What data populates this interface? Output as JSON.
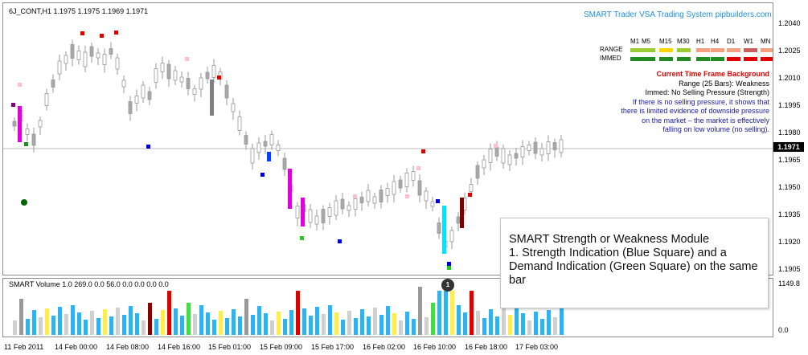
{
  "chart": {
    "symbol_line": "6J_CONT,H1  1.1975 1.1975 1.1969 1.1971",
    "volume_line": "SMART Volume 1.0 269.0 0.0 56.0 0.0 0.0 0.0 0.0",
    "title": "SMART Trader VSA Trading System pipbuilders.com",
    "price_axis": [
      "1.2040",
      "1.2025",
      "1.2010",
      "1.1995",
      "1.1980",
      "1.1965",
      "1.1950",
      "1.1935",
      "1.1920",
      "1.1905"
    ],
    "current_price": "1.1971",
    "volume_axis": [
      "1149.8",
      "0.0"
    ],
    "time_axis": [
      "11 Feb 2011",
      "14 Feb 00:00",
      "14 Feb 08:00",
      "14 Feb 16:00",
      "15 Feb 01:00",
      "15 Feb 09:00",
      "15 Feb 17:00",
      "16 Feb 02:00",
      "16 Feb 10:00",
      "16 Feb 18:00",
      "17 Feb 03:00"
    ]
  },
  "timeframe_table": {
    "headers": [
      "M1",
      "M5",
      "M15",
      "M30",
      "H1",
      "H4",
      "D1",
      "W1",
      "MN"
    ],
    "range_label": "RANGE",
    "immed_label": "IMMED",
    "range_colors": [
      "#9acd32",
      "#9acd32",
      "#ffd700",
      "#9acd32",
      "#f4a080",
      "#f4a080",
      "#f4a080",
      "#cd5c5c",
      "#f4a080"
    ],
    "immed_colors": [
      "#228b22",
      "#228b22",
      "#228b22",
      "#228b22",
      "#228b22",
      "#228b22",
      "#e00000",
      "#e00000",
      "#e00000"
    ]
  },
  "background_info": {
    "heading": "Current Time Frame Background",
    "range": "Range (25 Bars): Weakness",
    "immed": "Immed: No Selling Pressure (Strength)",
    "desc_lines": [
      "If there is no selling pressure, it shows that",
      "there is limited evidence of downside pressure",
      "on the market – the market is effectively",
      "falling on low volume (no selling)."
    ]
  },
  "callout": {
    "text": "SMART Strength or Weakness Module\n1. Strength Indication (Blue Square) and a Demand Indication (Green Square) on the same bar"
  },
  "badge": "1"
}
